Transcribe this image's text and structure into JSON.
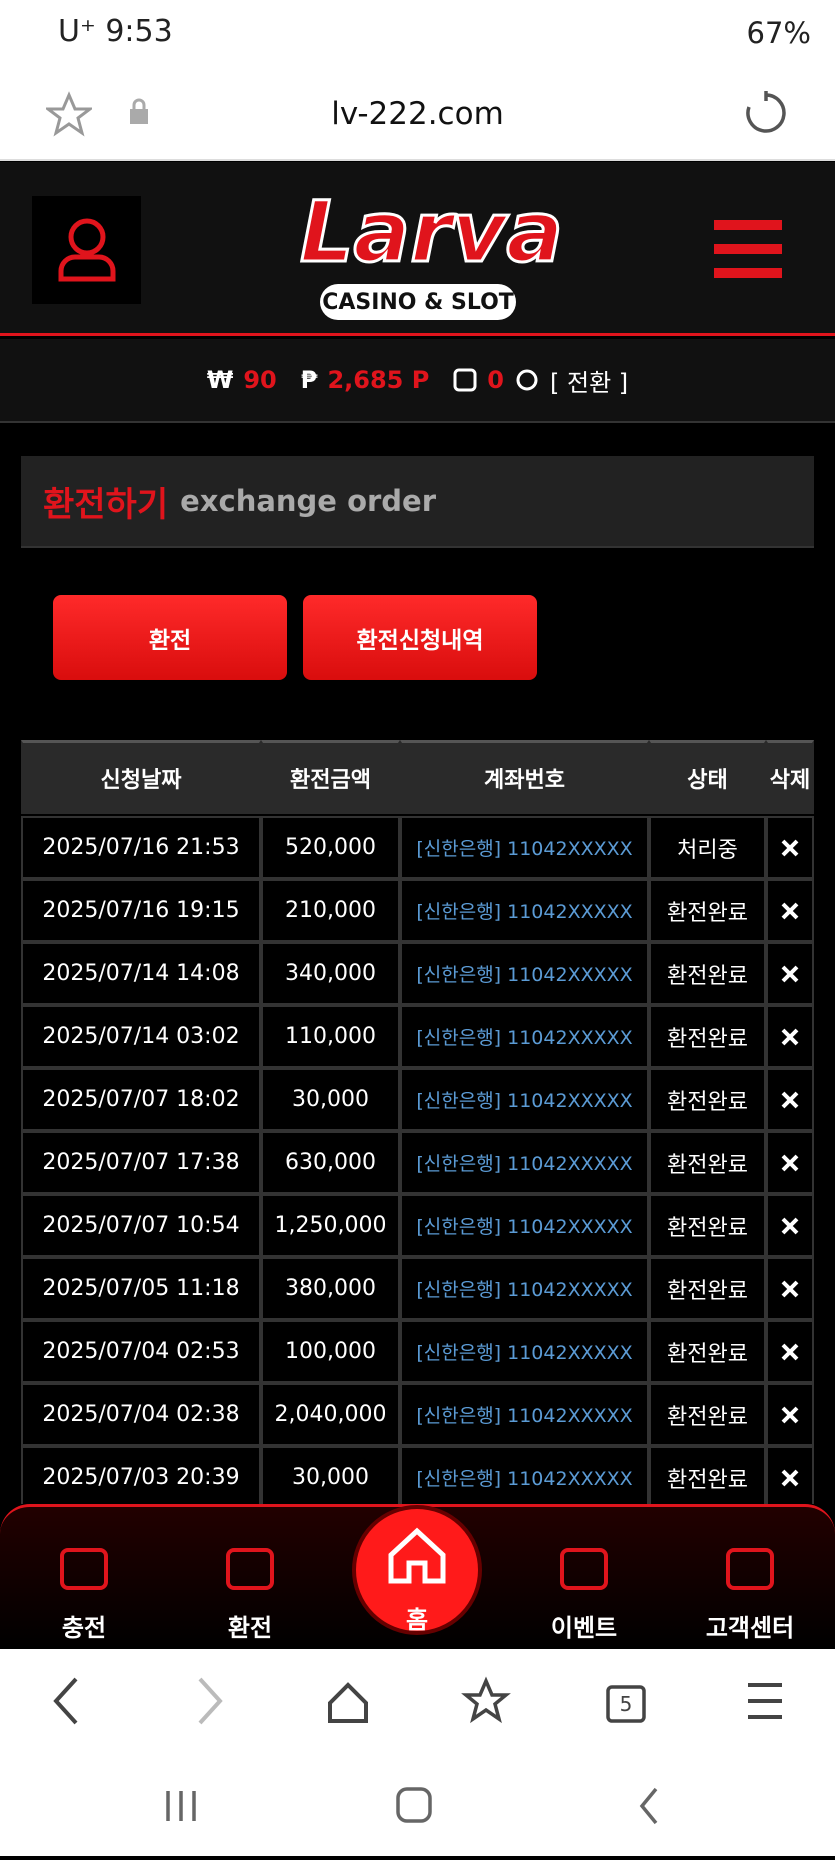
{
  "status_bar": {
    "time": "U⁺ 9:53",
    "battery": "67%"
  },
  "browser": {
    "url": "lv-222.com",
    "tab_count": "5"
  },
  "header": {
    "logo": "Larva",
    "logo_sub": "CASINO & SLOT"
  },
  "balance": {
    "won_symbol": "₩",
    "won": "90",
    "point_symbol": "₱",
    "point": "2,685 P",
    "chip": "0",
    "convert": "[ 전환 ]"
  },
  "section": {
    "title": "환전하기",
    "subtitle": "exchange order"
  },
  "buttons": [
    "환전",
    "환전신청내역"
  ],
  "table": {
    "headers": [
      "신청날짜",
      "환전금액",
      "계좌번호",
      "상태",
      "삭제"
    ],
    "rows": [
      [
        "2025/07/16 21:53",
        "520,000",
        "[신한은행] 11042XXXXX",
        "처리중"
      ],
      [
        "2025/07/16 19:15",
        "210,000",
        "[신한은행] 11042XXXXX",
        "환전완료"
      ],
      [
        "2025/07/14 14:08",
        "340,000",
        "[신한은행] 11042XXXXX",
        "환전완료"
      ],
      [
        "2025/07/14 03:02",
        "110,000",
        "[신한은행] 11042XXXXX",
        "환전완료"
      ],
      [
        "2025/07/07 18:02",
        "30,000",
        "[신한은행] 11042XXXXX",
        "환전완료"
      ],
      [
        "2025/07/07 17:38",
        "630,000",
        "[신한은행] 11042XXXXX",
        "환전완료"
      ],
      [
        "2025/07/07 10:54",
        "1,250,000",
        "[신한은행] 11042XXXXX",
        "환전완료"
      ],
      [
        "2025/07/05 11:18",
        "380,000",
        "[신한은행] 11042XXXXX",
        "환전완료"
      ],
      [
        "2025/07/04 02:53",
        "100,000",
        "[신한은행] 11042XXXXX",
        "환전완료"
      ],
      [
        "2025/07/04 02:38",
        "2,040,000",
        "[신한은행] 11042XXXXX",
        "환전완료"
      ],
      [
        "2025/07/03 20:39",
        "30,000",
        "[신한은행] 11042XXXXX",
        "환전완료"
      ]
    ]
  },
  "bottom_nav": [
    "충전",
    "환전",
    "홈",
    "이벤트",
    "고객센터"
  ]
}
